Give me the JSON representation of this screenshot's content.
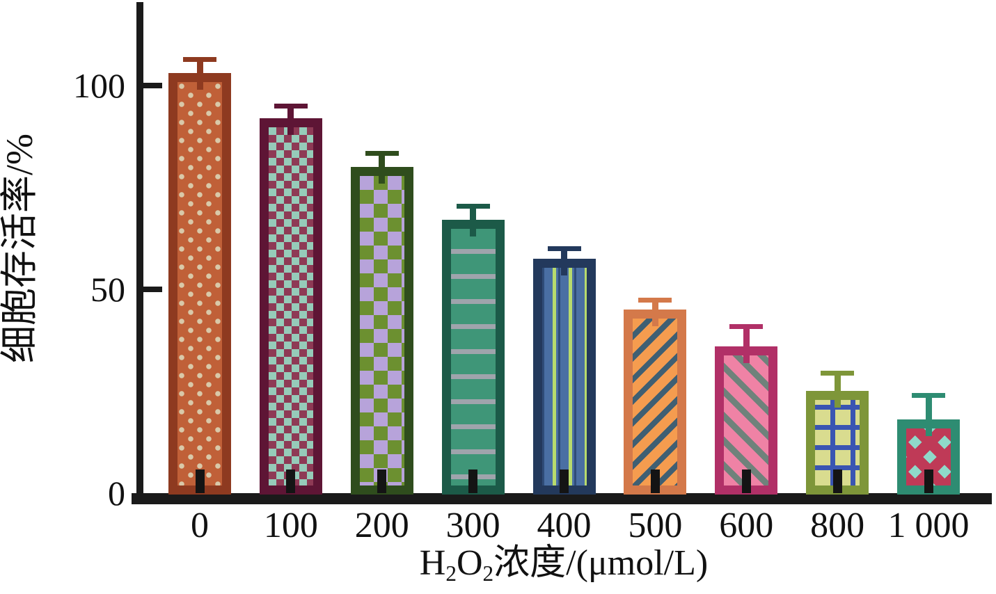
{
  "chart_data": {
    "type": "bar",
    "title": "",
    "ylabel": "细胞存活率/%",
    "xlabel_plain": "H2O2浓度/(μmol/L)",
    "xlabel_segments": [
      {
        "t": "H"
      },
      {
        "t": "2",
        "sub": true
      },
      {
        "t": "O"
      },
      {
        "t": "2",
        "sub": true
      },
      {
        "t": "浓度/(μmol/L)"
      }
    ],
    "categories": [
      "0",
      "100",
      "200",
      "300",
      "400",
      "500",
      "600",
      "800",
      "1 000"
    ],
    "values": [
      103,
      92,
      80,
      67,
      57.5,
      45,
      36,
      25,
      18
    ],
    "errors_plus": [
      4,
      3.5,
      4,
      4,
      3,
      3,
      5.5,
      5,
      6.5
    ],
    "ylim": [
      0,
      120
    ],
    "yticks": [
      0,
      50,
      100
    ],
    "grid": false,
    "legend": null,
    "axis_color": "#1a1a1a",
    "bar_styles": [
      {
        "border": "#8E3A20",
        "fill": "#C06038",
        "pattern": "dots",
        "c1": "#D9C9A9"
      },
      {
        "border": "#5E1535",
        "fill": "#8E3A55",
        "pattern": "checker",
        "c1": "#8E3A55",
        "c2": "#96CBB9",
        "size": 22
      },
      {
        "border": "#2F4D1D",
        "fill": "#6C9030",
        "pattern": "checker",
        "c1": "#6C9030",
        "c2": "#B7A3DA",
        "size": 40
      },
      {
        "border": "#1C5A48",
        "fill": "#3F9678",
        "pattern": "hstripes",
        "c1": "#9FA4AC"
      },
      {
        "border": "#23395C",
        "fill": "#4A6FA3",
        "pattern": "vstripes",
        "c1": "#B8DB6D",
        "c2": "#2F4C77"
      },
      {
        "border": "#D4794A",
        "fill": "#F59C4F",
        "pattern": "diag-up",
        "c1": "#3F5F73"
      },
      {
        "border": "#B13067",
        "fill": "#EF82A5",
        "pattern": "diag-down",
        "c1": "#6F827B"
      },
      {
        "border": "#7E9639",
        "fill": "#D9DC8F",
        "pattern": "grid",
        "c1": "#3A55B2"
      },
      {
        "border": "#2E8C72",
        "fill": "#BF3A57",
        "pattern": "diamonds",
        "c1": "#8FD9C9"
      }
    ]
  }
}
